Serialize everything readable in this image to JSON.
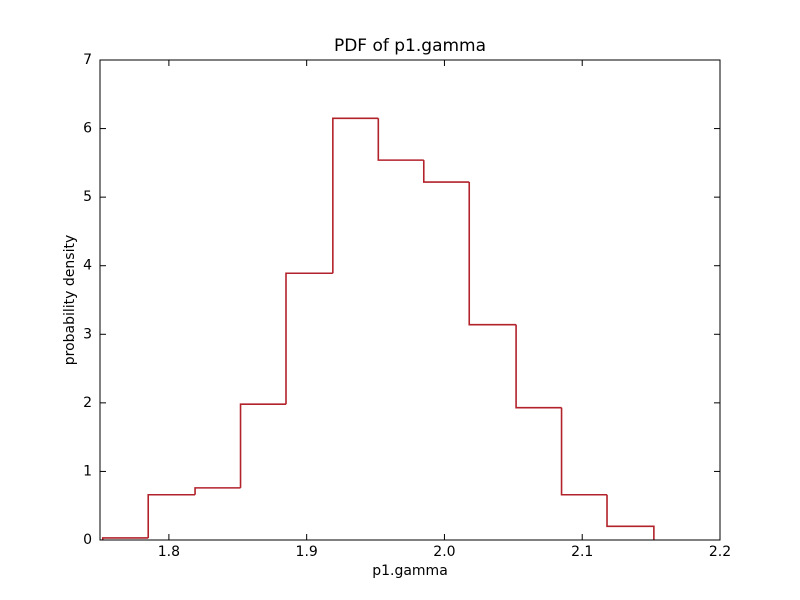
{
  "chart_data": {
    "type": "histogram",
    "title": "PDF of p1.gamma",
    "x_label": "p1.gamma",
    "y_label": "probability density",
    "bins": [
      1.752,
      1.785,
      1.819,
      1.852,
      1.885,
      1.919,
      1.952,
      1.985,
      2.018,
      2.052,
      2.085,
      2.118,
      2.152
    ],
    "values": [
      0.03,
      0.66,
      0.76,
      1.98,
      3.89,
      6.15,
      5.54,
      5.22,
      3.14,
      1.93,
      0.66,
      0.2
    ],
    "color": "#b2222a",
    "histtype": "step",
    "xlim": [
      1.75,
      2.2
    ],
    "xticks": [
      1.8,
      1.9,
      {
        "value": 2,
        "label": "2.0"
      },
      2.1,
      2.2
    ],
    "ylim": [
      0,
      7
    ],
    "yticks": [
      0,
      1,
      2,
      3,
      4,
      5,
      6,
      7
    ],
    "grid": false
  }
}
